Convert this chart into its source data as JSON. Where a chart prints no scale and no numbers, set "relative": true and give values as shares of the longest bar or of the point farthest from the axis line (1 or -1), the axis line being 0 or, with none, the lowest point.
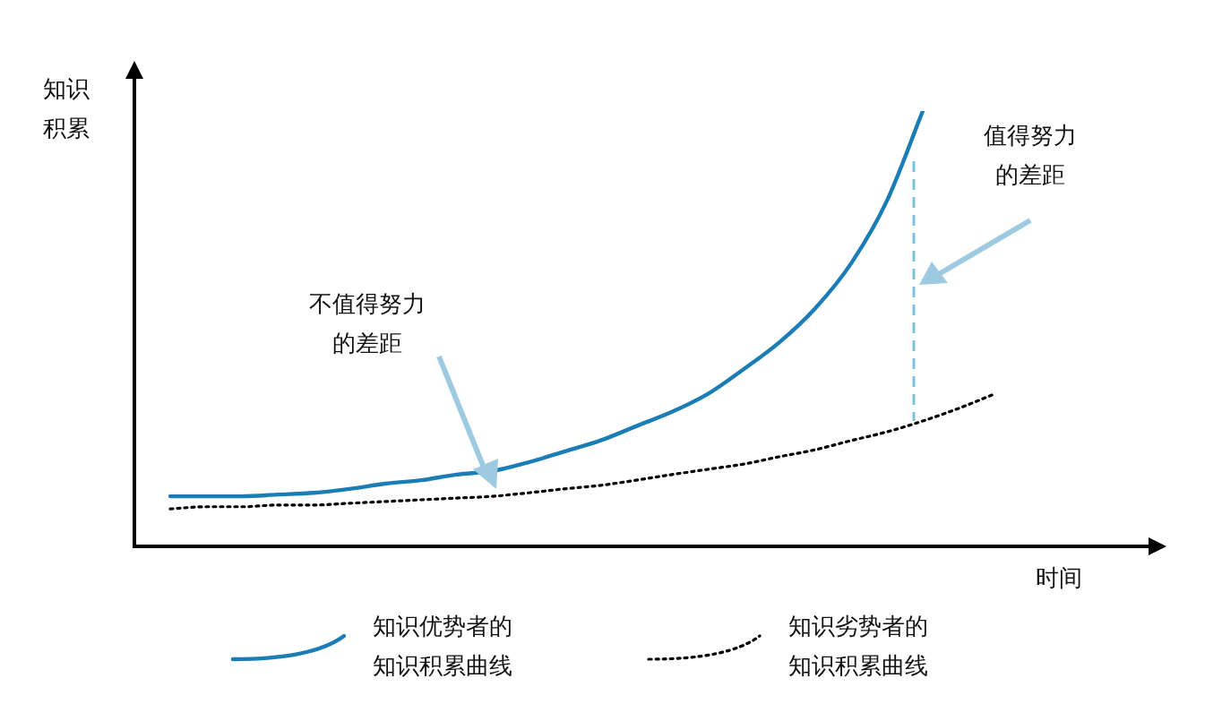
{
  "chart_data": {
    "type": "line",
    "relative": true,
    "xlabel": "时间",
    "ylabel": "知识积累",
    "legend": "bottom",
    "grid": false,
    "marker": "none",
    "categories": [
      null,
      null,
      null,
      null,
      null,
      null,
      null,
      null,
      null,
      null,
      null,
      null,
      null,
      null,
      null,
      null,
      null,
      null,
      null,
      null,
      null,
      null,
      null,
      null,
      null,
      null,
      null,
      null,
      null
    ],
    "series": [
      {
        "name": "知识优势者的知识积累曲线",
        "color": "#1a7db5",
        "line_style": "solid",
        "values": [
          null,
          0.115,
          0.115,
          0.115,
          0.119,
          0.123,
          0.132,
          0.144,
          0.152,
          0.165,
          0.173,
          0.193,
          0.218,
          0.243,
          0.276,
          0.309,
          0.35,
          0.407,
          0.469,
          0.547,
          0.65,
          0.794,
          1,
          null,
          null,
          null,
          null,
          null,
          null
        ]
      },
      {
        "name": "知识劣势者的知识积累曲线",
        "color": "#000000",
        "line_style": "dotted",
        "values": [
          null,
          0.086,
          0.091,
          0.091,
          0.095,
          0.095,
          0.099,
          0.103,
          0.107,
          0.111,
          0.115,
          0.123,
          0.132,
          0.14,
          0.152,
          0.165,
          0.177,
          0.189,
          0.206,
          0.222,
          0.243,
          0.263,
          0.288,
          0.317,
          0.35,
          null,
          null,
          null,
          null
        ]
      }
    ],
    "annotations": [
      "不值得努力的差距",
      "值得努力的差距"
    ]
  }
}
